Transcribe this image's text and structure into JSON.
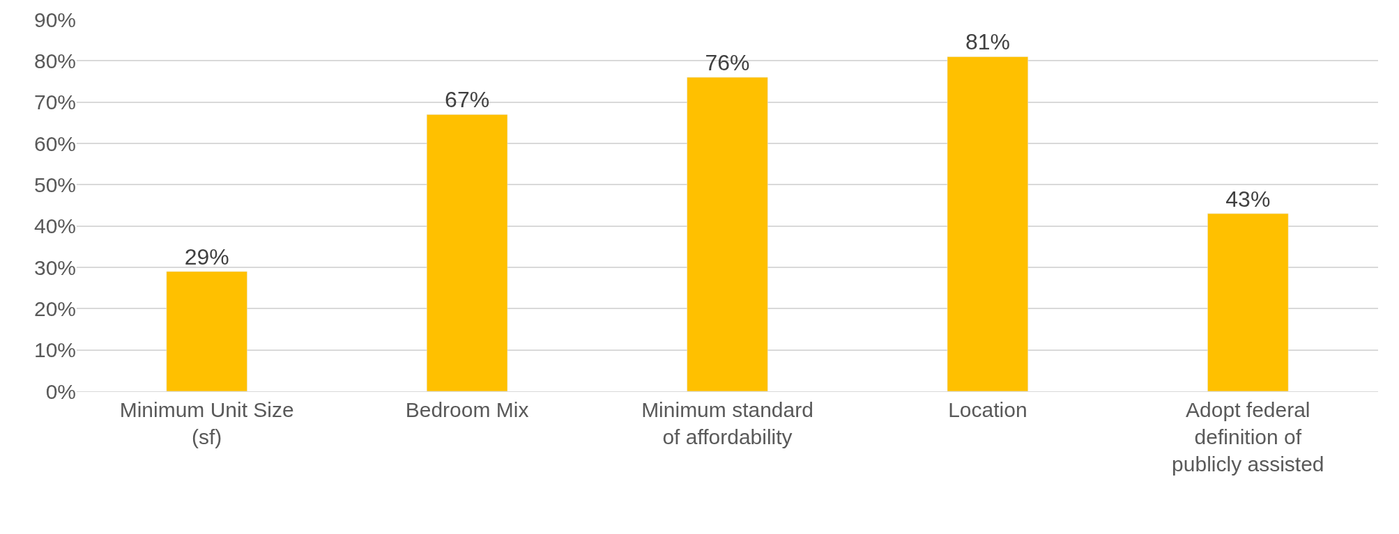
{
  "chart_data": {
    "type": "bar",
    "categories": [
      "Minimum Unit Size (sf)",
      "Bedroom Mix",
      "Minimum standard of affordability",
      "Location",
      "Adopt federal definition of publicly assisted"
    ],
    "values": [
      29,
      67,
      76,
      81,
      43
    ],
    "color": "#ffc000",
    "value_labels": [
      "29%",
      "67%",
      "76%",
      "81%",
      "43%"
    ],
    "ylim": [
      0,
      90
    ],
    "yticks": [
      {
        "value": 0,
        "label": "0%"
      },
      {
        "value": 10,
        "label": "10%"
      },
      {
        "value": 20,
        "label": "20%"
      },
      {
        "value": 30,
        "label": "30%"
      },
      {
        "value": 40,
        "label": "40%"
      },
      {
        "value": 50,
        "label": "50%"
      },
      {
        "value": 60,
        "label": "60%"
      },
      {
        "value": 70,
        "label": "70%"
      },
      {
        "value": 80,
        "label": "80%"
      },
      {
        "value": 90,
        "label": "90%"
      }
    ],
    "grid": "y"
  }
}
